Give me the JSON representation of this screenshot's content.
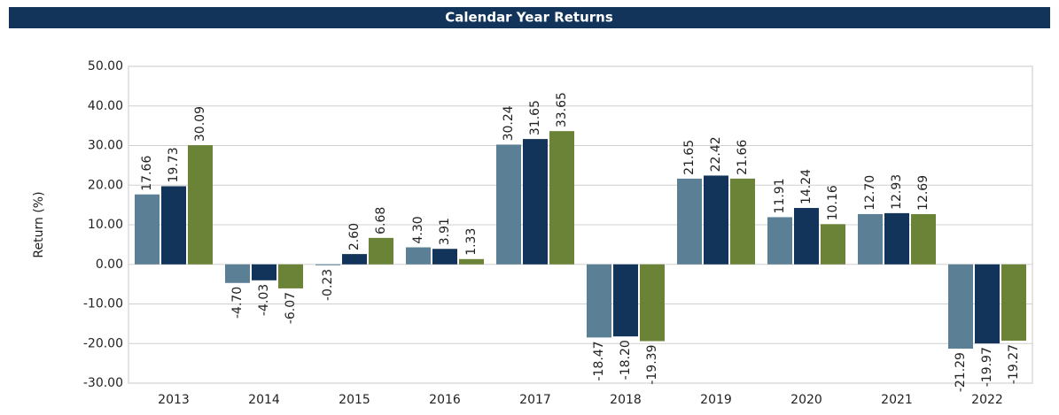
{
  "chart_data": {
    "type": "bar",
    "title": "Calendar Year Returns",
    "y_label": "Return (%)",
    "categories": [
      "2013",
      "2014",
      "2015",
      "2016",
      "2017",
      "2018",
      "2019",
      "2020",
      "2021",
      "2022"
    ],
    "series": [
      {
        "color": "#5b7f95",
        "values": [
          17.66,
          -4.7,
          -0.23,
          4.3,
          30.24,
          -18.47,
          21.65,
          11.91,
          12.7,
          -21.29
        ],
        "value_labels": [
          "17.66",
          "-4.70",
          "-0.23",
          "4.30",
          "30.24",
          "-18.47",
          "21.65",
          "11.91",
          "12.70",
          "-21.29"
        ]
      },
      {
        "color": "#12345a",
        "values": [
          19.73,
          -4.03,
          2.6,
          3.91,
          31.65,
          -18.2,
          22.42,
          14.24,
          12.93,
          -19.97
        ],
        "value_labels": [
          "19.73",
          "-4.03",
          "2.60",
          "3.91",
          "31.65",
          "-18.20",
          "22.42",
          "14.24",
          "12.93",
          "-19.97"
        ]
      },
      {
        "color": "#6b8337",
        "values": [
          30.09,
          -6.07,
          6.68,
          1.33,
          33.65,
          -19.39,
          21.66,
          10.16,
          12.69,
          -19.27
        ],
        "value_labels": [
          "30.09",
          "-6.07",
          "6.68",
          "1.33",
          "33.65",
          "-19.39",
          "21.66",
          "10.16",
          "12.69",
          "-19.27"
        ]
      }
    ],
    "ylim": [
      -30,
      50
    ],
    "yticks": [
      {
        "value": -30,
        "label": "-30.00"
      },
      {
        "value": -20,
        "label": "-20.00"
      },
      {
        "value": -10,
        "label": "-10.00"
      },
      {
        "value": 0,
        "label": "0.00"
      },
      {
        "value": 10,
        "label": "10.00"
      },
      {
        "value": 20,
        "label": "20.00"
      },
      {
        "value": 30,
        "label": "30.00"
      },
      {
        "value": 40,
        "label": "40.00"
      },
      {
        "value": 50,
        "label": "50.00"
      }
    ],
    "grid": true
  }
}
